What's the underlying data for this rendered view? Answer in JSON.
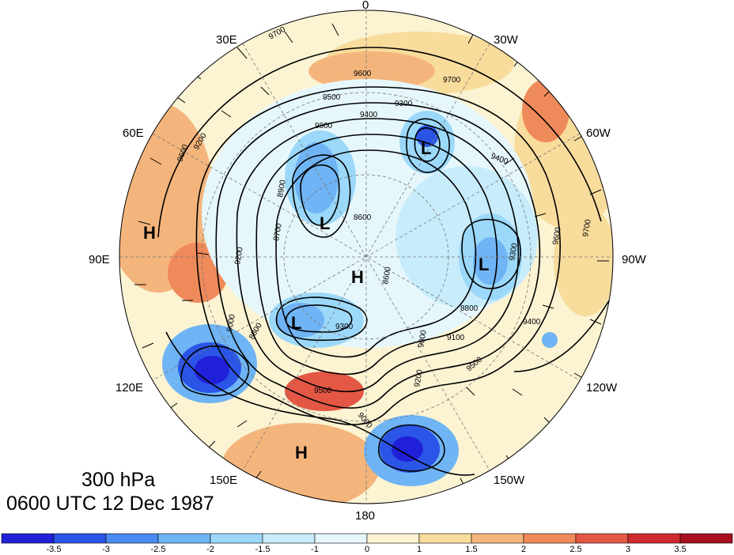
{
  "caption": {
    "level": "300 hPa",
    "time": "0600 UTC 12 Dec 1987"
  },
  "longitude_labels": {
    "lon_0": "0",
    "lon_30w": "30W",
    "lon_60w": "60W",
    "lon_90w": "90W",
    "lon_120w": "120W",
    "lon_150w": "150W",
    "lon_180": "180",
    "lon_150e": "150E",
    "lon_120e": "120E",
    "lon_90e": "90E",
    "lon_60e": "60E",
    "lon_30e": "30E"
  },
  "pressure_systems": [
    {
      "name": "H-asia",
      "label": "H"
    },
    {
      "name": "L-greenland",
      "label": "L"
    },
    {
      "name": "L-siberia",
      "label": "L"
    },
    {
      "name": "H-pole",
      "label": "H"
    },
    {
      "name": "L-canada",
      "label": "L"
    },
    {
      "name": "L-east-siberia",
      "label": "L"
    },
    {
      "name": "H-pacific",
      "label": "H"
    }
  ],
  "contour_labels": [
    "9700",
    "9600",
    "9500",
    "9300",
    "9800",
    "9400",
    "9700",
    "8900",
    "8600",
    "9200",
    "8700",
    "9200",
    "9000",
    "8800",
    "9300",
    "9100",
    "9400",
    "9500",
    "8800",
    "9200",
    "9300",
    "9000",
    "9500",
    "9600",
    "9700",
    "9600",
    "9000",
    "9400",
    "8600"
  ],
  "colorbar": {
    "labels": [
      "-3.5",
      "-3",
      "-2.5",
      "-2",
      "-1.5",
      "-1",
      "0",
      "1",
      "1.5",
      "2",
      "2.5",
      "3",
      "3.5"
    ],
    "colors": [
      "#2020d8",
      "#2b55e6",
      "#4a8af0",
      "#6fb4f5",
      "#9bd8fa",
      "#c8ecfb",
      "#e6f7fb",
      "#fbf3d2",
      "#f8dc9c",
      "#f4b57c",
      "#ef8a5a",
      "#e45745",
      "#cf2a2f",
      "#a8101e"
    ]
  }
}
